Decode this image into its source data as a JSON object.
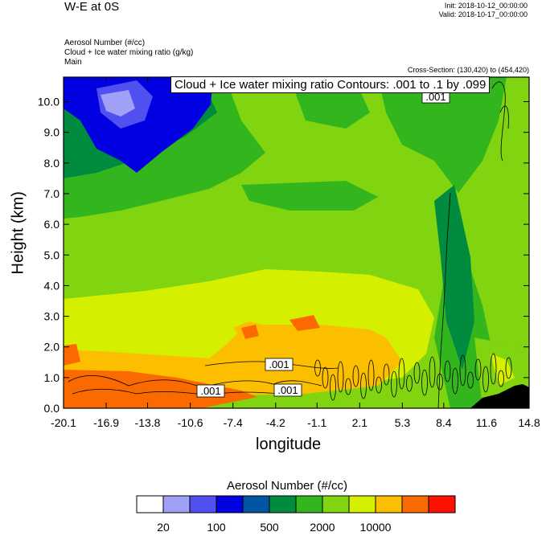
{
  "header": {
    "title": "W-E at 0S",
    "init": "Init: 2018-10-12_00:00:00",
    "valid": "Valid: 2018-10-17_00:00:00",
    "variables": [
      "Aerosol Number   (#/cc)",
      "Cloud + Ice water mixing ratio   (g/kg)",
      "Main"
    ],
    "cross_section": "Cross-Section: (130,420) to (454,420)"
  },
  "contour_label": "Cloud + Ice water mixing ratio Contours: .001 to .1 by .099",
  "chart_data": {
    "type": "heatmap",
    "xlabel": "longitude",
    "ylabel": "Height (km)",
    "x_ticks": [
      "-20.1",
      "-16.9",
      "-13.8",
      "-10.6",
      "-7.4",
      "-4.2",
      "-1.1",
      "2.1",
      "5.3",
      "8.4",
      "11.6",
      "14.8"
    ],
    "y_ticks": [
      "0.0",
      "1.0",
      "2.0",
      "3.0",
      "4.0",
      "5.0",
      "6.0",
      "7.0",
      "8.0",
      "9.0",
      "10.0"
    ],
    "xlim": [
      -20.1,
      14.8
    ],
    "ylim": [
      0.0,
      10.8
    ],
    "contour_labels": [
      ".001",
      ".001",
      ".001",
      ".001"
    ],
    "colorbar": {
      "title": "Aerosol Number  (#/cc)",
      "colors": [
        "#ffffff",
        "#a0a0f7",
        "#5050f0",
        "#0000e0",
        "#0055a5",
        "#008b3f",
        "#33b51e",
        "#80d410",
        "#d5ef00",
        "#fbbf00",
        "#fa6a00",
        "#ff1100"
      ],
      "labels": [
        "20",
        "100",
        "500",
        "2000",
        "10000"
      ]
    }
  }
}
